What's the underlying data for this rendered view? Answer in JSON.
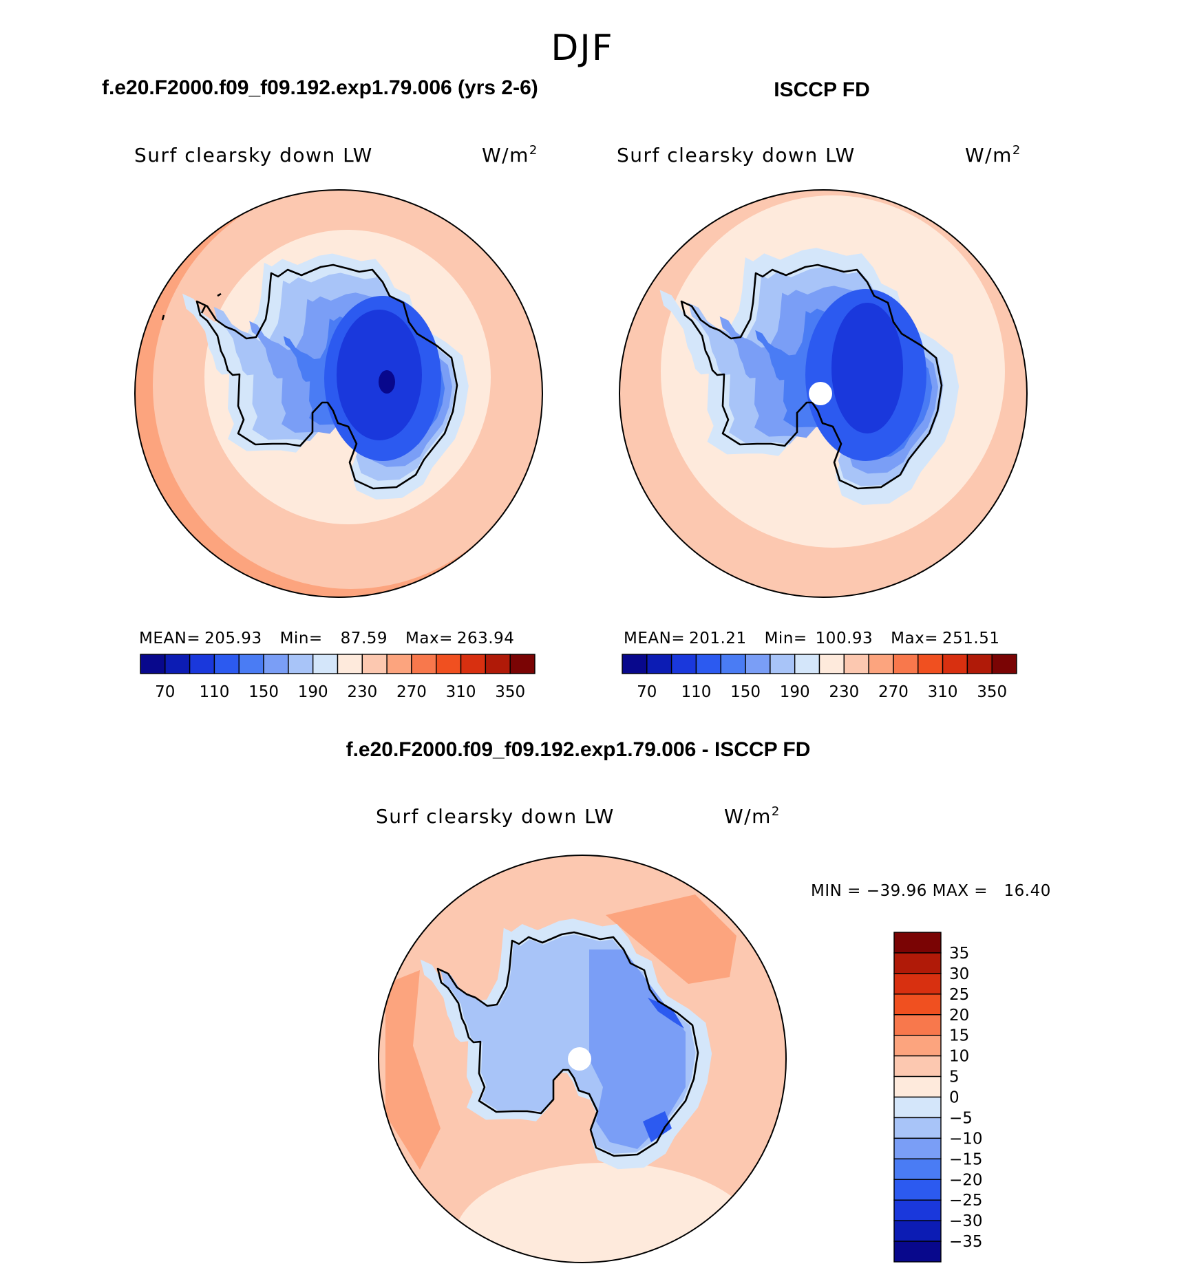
{
  "figure_title": "DJF",
  "panels": [
    {
      "header": "f.e20.F2000.f09_f09.192.exp1.79.006 (yrs 2-6)",
      "variable": "Surf clearsky down LW",
      "units_base": "W/m",
      "units_exp": "2",
      "stats": {
        "mean_label": "MEAN=",
        "mean": "205.93",
        "min_label": "Min=",
        "min": "87.59",
        "max_label": "Max=",
        "max": "263.94"
      }
    },
    {
      "header": "ISCCP FD",
      "variable": "Surf clearsky down LW",
      "units_base": "W/m",
      "units_exp": "2",
      "stats": {
        "mean_label": "MEAN=",
        "mean": "201.21",
        "min_label": "Min=",
        "min": "100.93",
        "max_label": "Max=",
        "max": "251.51"
      }
    },
    {
      "header": "f.e20.F2000.f09_f09.192.exp1.79.006 - ISCCP FD",
      "variable": "Surf clearsky down LW",
      "units_base": "W/m",
      "units_exp": "2",
      "stats_text": "MIN = −39.96 MAX =   16.40"
    }
  ],
  "chart_data": [
    {
      "type": "heatmap",
      "projection": "south-polar stereographic",
      "title": "Surf clearsky down LW",
      "units": "W/m2",
      "stats": {
        "mean": 205.93,
        "min": 87.59,
        "max": 263.94
      },
      "colorbar": {
        "orientation": "horizontal",
        "levels": [
          50,
          70,
          90,
          110,
          130,
          150,
          170,
          190,
          210,
          230,
          250,
          270,
          290,
          310,
          330,
          350
        ],
        "tick_labels": [
          "70",
          "110",
          "150",
          "190",
          "230",
          "270",
          "310",
          "350"
        ],
        "colors": [
          "#08088c",
          "#0c1cb4",
          "#1a38dc",
          "#2c5af0",
          "#4a7cf4",
          "#7a9ef6",
          "#a8c4f8",
          "#d4e6fa",
          "#feeadc",
          "#fcc8b0",
          "#fca47e",
          "#f8784c",
          "#f05020",
          "#d83010",
          "#b01a08",
          "#7a0404"
        ]
      },
      "field_rings": [
        {
          "region": "outer ocean",
          "value": 270
        },
        {
          "region": "mid ocean",
          "value": 250
        },
        {
          "region": "inner ocean / sea ice",
          "value": 230
        },
        {
          "region": "coastal ice",
          "value": 210
        },
        {
          "region": "ice sheet margin",
          "value": 190
        },
        {
          "region": "ice sheet slope",
          "value": 170
        },
        {
          "region": "ice sheet",
          "value": 150
        },
        {
          "region": "east plateau",
          "value": 130
        },
        {
          "region": "plateau interior",
          "value": 110
        },
        {
          "region": "plateau minimum",
          "value": 90
        }
      ]
    },
    {
      "type": "heatmap",
      "projection": "south-polar stereographic",
      "title": "Surf clearsky down LW",
      "units": "W/m2",
      "stats": {
        "mean": 201.21,
        "min": 100.93,
        "max": 251.51
      },
      "colorbar": {
        "orientation": "horizontal",
        "levels": [
          50,
          70,
          90,
          110,
          130,
          150,
          170,
          190,
          210,
          230,
          250,
          270,
          290,
          310,
          330,
          350
        ],
        "tick_labels": [
          "70",
          "110",
          "150",
          "190",
          "230",
          "270",
          "310",
          "350"
        ],
        "colors": [
          "#08088c",
          "#0c1cb4",
          "#1a38dc",
          "#2c5af0",
          "#4a7cf4",
          "#7a9ef6",
          "#a8c4f8",
          "#d4e6fa",
          "#feeadc",
          "#fcc8b0",
          "#fca47e",
          "#f8784c",
          "#f05020",
          "#d83010",
          "#b01a08",
          "#7a0404"
        ]
      },
      "field_rings": [
        {
          "region": "outer ocean",
          "value": 250
        },
        {
          "region": "inner ocean / sea ice",
          "value": 230
        },
        {
          "region": "coastal ice",
          "value": 210
        },
        {
          "region": "ice sheet margin",
          "value": 190
        },
        {
          "region": "ice sheet slope",
          "value": 170
        },
        {
          "region": "ice sheet",
          "value": 150
        },
        {
          "region": "east plateau",
          "value": 130
        },
        {
          "region": "plateau interior",
          "value": 110
        }
      ],
      "missing": "pole hole"
    },
    {
      "type": "heatmap",
      "projection": "south-polar stereographic",
      "title": "Surf clearsky down LW",
      "units": "W/m2",
      "stats": {
        "min": -39.96,
        "max": 16.4
      },
      "colorbar": {
        "orientation": "vertical",
        "levels": [
          40,
          35,
          30,
          25,
          20,
          15,
          10,
          5,
          0,
          -5,
          -10,
          -15,
          -20,
          -25,
          -30,
          -35,
          -40
        ],
        "tick_labels": [
          "35",
          "30",
          "25",
          "20",
          "15",
          "10",
          "5",
          "0",
          "−5",
          "−10",
          "−15",
          "−20",
          "−25",
          "−30",
          "−35"
        ],
        "colors": [
          "#7a0404",
          "#b01a08",
          "#d83010",
          "#f05020",
          "#f8784c",
          "#fca47e",
          "#fcc8b0",
          "#feeadc",
          "#d4e6fa",
          "#a8c4f8",
          "#7a9ef6",
          "#4a7cf4",
          "#2c5af0",
          "#1a38dc",
          "#0c1cb4",
          "#08088c"
        ]
      },
      "field_rings": [
        {
          "region": "ocean",
          "value": 2.5
        },
        {
          "region": "ocean patches",
          "value": 7.5
        },
        {
          "region": "south ocean band",
          "value": -2.5
        },
        {
          "region": "coastal ice",
          "value": -7.5
        },
        {
          "region": "ice sheet",
          "value": -12.5
        },
        {
          "region": "east interior",
          "value": -17.5
        },
        {
          "region": "local minima",
          "value": -27.5
        }
      ],
      "missing": "pole hole"
    }
  ]
}
